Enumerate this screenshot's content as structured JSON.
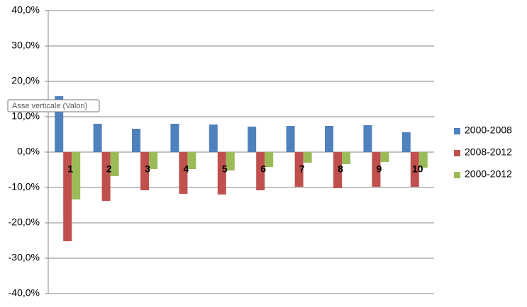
{
  "chart_data": {
    "type": "bar",
    "categories": [
      "1",
      "2",
      "3",
      "4",
      "5",
      "6",
      "7",
      "8",
      "9",
      "10"
    ],
    "series": [
      {
        "name": "2000-2008",
        "color": "#4f81bd",
        "values": [
          15.8,
          8.0,
          6.6,
          8.0,
          7.8,
          7.2,
          7.4,
          7.4,
          7.6,
          5.6
        ]
      },
      {
        "name": "2008-2012",
        "color": "#c0504d",
        "values": [
          -25.2,
          -13.8,
          -10.8,
          -11.8,
          -12.0,
          -10.8,
          -9.8,
          -10.2,
          -9.8,
          -9.8
        ]
      },
      {
        "name": "2000-2012",
        "color": "#9bbb59",
        "values": [
          -13.4,
          -6.8,
          -4.8,
          -4.8,
          -5.2,
          -4.2,
          -3.0,
          -3.4,
          -2.8,
          -4.4
        ]
      }
    ],
    "ylim": [
      -40,
      40
    ],
    "yticks": [
      {
        "value": -40,
        "label": "-40,0%"
      },
      {
        "value": -30,
        "label": "-30,0%"
      },
      {
        "value": -20,
        "label": "-20,0%"
      },
      {
        "value": -10,
        "label": "-10,0%"
      },
      {
        "value": 0,
        "label": "0,0%"
      },
      {
        "value": 10,
        "label": "10,0%"
      },
      {
        "value": 20,
        "label": "20,0%"
      },
      {
        "value": 30,
        "label": "30,0%"
      },
      {
        "value": 40,
        "label": "40,0%"
      }
    ],
    "grid": true,
    "legend": "right",
    "tooltip": "Asse verticale (Valori)"
  }
}
